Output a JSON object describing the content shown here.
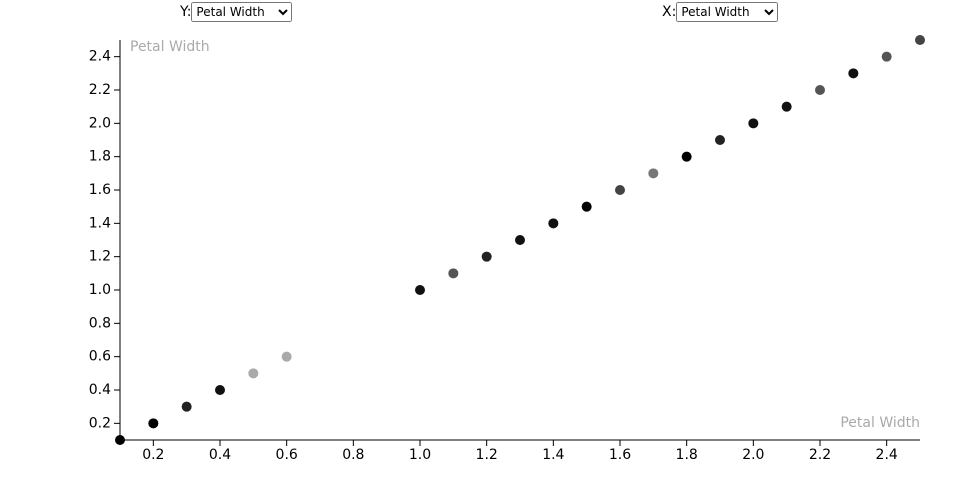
{
  "controls": {
    "y": {
      "label": "Y:",
      "selected": "Petal Width"
    },
    "x": {
      "label": "X:",
      "selected": "Petal Width"
    }
  },
  "chart_data": {
    "type": "scatter",
    "x_label": "Petal Width",
    "y_label": "Petal Width",
    "x": [
      0.1,
      0.2,
      0.3,
      0.4,
      0.5,
      0.6,
      1.0,
      1.1,
      1.2,
      1.3,
      1.4,
      1.5,
      1.6,
      1.7,
      1.8,
      1.9,
      2.0,
      2.1,
      2.2,
      2.3,
      2.4,
      2.5
    ],
    "values": [
      0.1,
      0.2,
      0.3,
      0.4,
      0.5,
      0.6,
      1.0,
      1.1,
      1.2,
      1.3,
      1.4,
      1.5,
      1.6,
      1.7,
      1.8,
      1.9,
      2.0,
      2.1,
      2.2,
      2.3,
      2.4,
      2.5
    ],
    "colors": [
      "#000000",
      "#000000",
      "#222222",
      "#111111",
      "#aaaaaa",
      "#aaaaaa",
      "#111111",
      "#555555",
      "#222222",
      "#111111",
      "#111111",
      "#000000",
      "#444444",
      "#777777",
      "#000000",
      "#222222",
      "#111111",
      "#111111",
      "#555555",
      "#111111",
      "#555555",
      "#444444"
    ],
    "xlim": [
      0.1,
      2.5
    ],
    "ylim": [
      0.1,
      2.5
    ],
    "xticks": [
      0.2,
      0.4,
      0.6,
      0.8,
      {
        "value": 1,
        "label": "1.0"
      },
      1.2,
      1.4,
      1.6,
      1.8,
      {
        "value": 2,
        "label": "2.0"
      },
      2.2,
      2.4
    ],
    "yticks": [
      0.2,
      0.4,
      0.6,
      0.8,
      {
        "value": 1,
        "label": "1.0"
      },
      1.2,
      1.4,
      1.6,
      1.8,
      {
        "value": 2,
        "label": "2.0"
      },
      2.2,
      2.4
    ]
  }
}
